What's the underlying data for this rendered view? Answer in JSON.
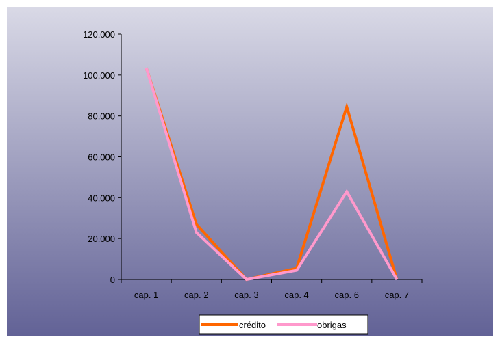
{
  "chart_data": {
    "type": "line",
    "categories": [
      "cap. 1",
      "cap. 2",
      "cap. 3",
      "cap. 4",
      "cap. 6",
      "cap. 7"
    ],
    "series": [
      {
        "name": "crédito",
        "values": [
          103500,
          27000,
          0,
          5500,
          84500,
          0
        ],
        "color": "#FF6600"
      },
      {
        "name": "obrigas",
        "values": [
          103500,
          23000,
          0,
          4500,
          43000,
          0
        ],
        "color": "#FF99CC"
      }
    ],
    "yticks": [
      "0",
      "20.000",
      "40.000",
      "60.000",
      "80.000",
      "100.000",
      "120.000"
    ],
    "ylim": [
      0,
      120000
    ],
    "grid": false,
    "legend_position": "bottom",
    "background_gradient": [
      "#D9D9E6",
      "#626296"
    ]
  }
}
